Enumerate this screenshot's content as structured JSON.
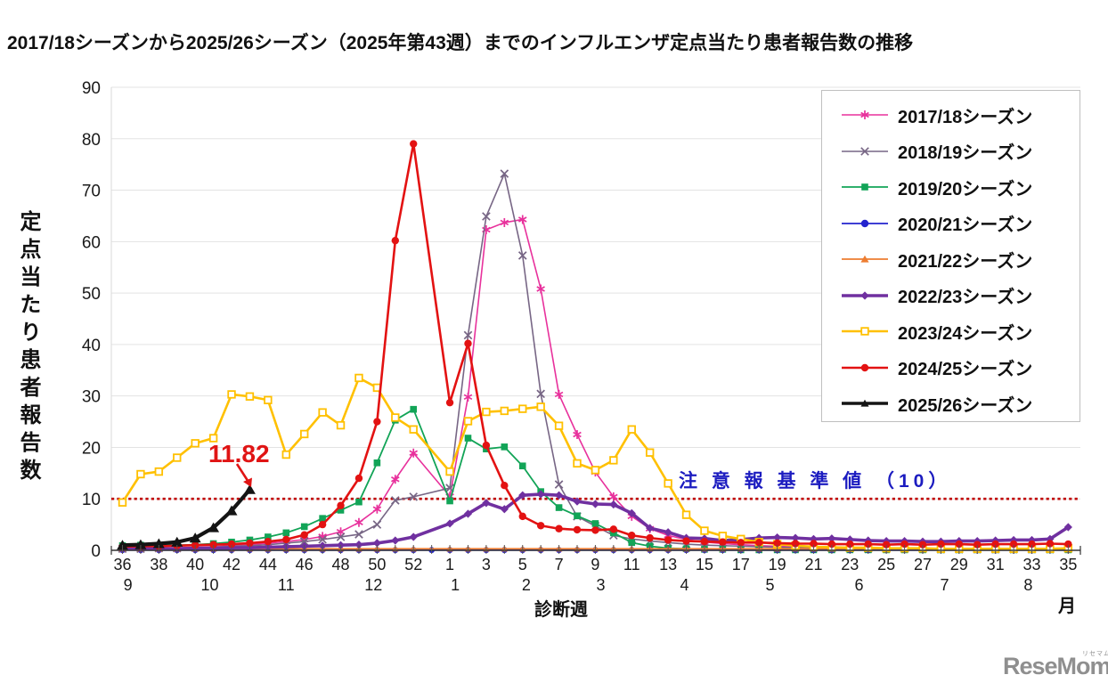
{
  "title": "2017/18シーズンから2025/26シーズン（2025年第43週）までのインフルエンザ定点当たり患者報告数の推移",
  "y_axis": {
    "label": "定点当たり患者報告数",
    "ticks": [
      0,
      10,
      20,
      30,
      40,
      50,
      60,
      70,
      80,
      90
    ],
    "max": 90
  },
  "x_axis": {
    "title": "診断週",
    "unit_label": "月"
  },
  "alert_line": {
    "text": "注 意 報 基 準 値 （10）",
    "value": 10,
    "line_color": "#C00000",
    "text_color": "#1C1CC0"
  },
  "annotation": {
    "text": "11.82",
    "color": "#E01414",
    "target_week": "43"
  },
  "watermark": {
    "text": "ReseMom.",
    "ruby": "リセマム"
  },
  "chart_data": {
    "type": "line",
    "xlabel": "診断週",
    "ylabel": "定点当たり患者報告数",
    "ylim": [
      0,
      90
    ],
    "grid": true,
    "legend_position": "right",
    "weeks": [
      "36",
      "37",
      "38",
      "39",
      "40",
      "41",
      "42",
      "43",
      "44",
      "45",
      "46",
      "47",
      "48",
      "49",
      "50",
      "51",
      "52",
      "53",
      "1",
      "2",
      "3",
      "4",
      "5",
      "6",
      "7",
      "8",
      "9",
      "10",
      "11",
      "12",
      "13",
      "14",
      "15",
      "16",
      "17",
      "18",
      "19",
      "20",
      "21",
      "22",
      "23",
      "24",
      "25",
      "26",
      "27",
      "28",
      "29",
      "30",
      "31",
      "32",
      "33",
      "34",
      "35"
    ],
    "month_labels": [
      {
        "label": "9",
        "i": 0.3
      },
      {
        "label": "10",
        "i": 4.8
      },
      {
        "label": "11",
        "i": 9.0
      },
      {
        "label": "12",
        "i": 13.8
      },
      {
        "label": "1",
        "i": 18.3
      },
      {
        "label": "2",
        "i": 22.2
      },
      {
        "label": "3",
        "i": 26.3
      },
      {
        "label": "4",
        "i": 30.9
      },
      {
        "label": "5",
        "i": 35.6
      },
      {
        "label": "6",
        "i": 40.5
      },
      {
        "label": "7",
        "i": 45.2
      },
      {
        "label": "8",
        "i": 49.8
      }
    ],
    "alert_value": 10,
    "series": [
      {
        "name": "2017/18シーズン",
        "color": "#E8319C",
        "marker": "asterisk",
        "width": 1.6,
        "values": [
          0.3,
          0.3,
          0.4,
          0.5,
          0.6,
          0.7,
          0.9,
          1.1,
          1.4,
          1.7,
          2.1,
          2.7,
          3.6,
          5.4,
          8.0,
          13.8,
          18.9,
          null,
          10.5,
          29.8,
          62.3,
          63.7,
          64.3,
          50.8,
          30.3,
          22.5,
          15.2,
          10.4,
          6.6,
          4.2,
          2.9,
          2.1,
          1.6,
          1.3,
          1.1,
          0.9,
          0.8,
          0.7,
          0.6,
          0.5,
          0.5,
          0.4,
          0.4,
          0.3,
          0.3,
          0.3,
          0.3,
          0.2,
          0.2,
          0.2,
          0.2,
          0.3,
          0.3
        ]
      },
      {
        "name": "2018/19シーズン",
        "color": "#776685",
        "marker": "x",
        "width": 1.6,
        "values": [
          0.3,
          0.3,
          0.4,
          0.4,
          0.5,
          0.6,
          0.8,
          0.9,
          1.1,
          1.4,
          1.7,
          2.1,
          2.6,
          3.1,
          5.0,
          9.7,
          10.4,
          null,
          12.1,
          41.8,
          64.9,
          73.2,
          57.3,
          30.4,
          12.8,
          6.6,
          4.7,
          2.9,
          2.2,
          1.8,
          1.5,
          1.2,
          1.0,
          0.9,
          0.8,
          0.7,
          0.6,
          0.5,
          0.5,
          0.4,
          0.4,
          0.3,
          0.3,
          0.3,
          0.3,
          0.2,
          0.2,
          0.2,
          0.2,
          0.2,
          0.2,
          0.2,
          0.3
        ]
      },
      {
        "name": "2019/20シーズン",
        "color": "#12A457",
        "marker": "square",
        "width": 1.8,
        "values": [
          0.9,
          1.0,
          0.9,
          1.0,
          1.1,
          1.3,
          1.6,
          2.0,
          2.6,
          3.4,
          4.6,
          6.2,
          7.8,
          9.4,
          17.0,
          25.3,
          27.4,
          null,
          9.6,
          21.8,
          19.7,
          20.1,
          16.4,
          11.4,
          8.3,
          6.7,
          5.2,
          3.4,
          1.5,
          0.8,
          0.4,
          0.3,
          0.2,
          0.2,
          0.1,
          0.1,
          0.1,
          0.1,
          0.1,
          0.1,
          0.1,
          0.1,
          0.1,
          0.1,
          0.1,
          0.1,
          0.1,
          0.1,
          0.1,
          0.1,
          0.1,
          0.1,
          0.1
        ]
      },
      {
        "name": "2020/21シーズン",
        "color": "#2323CE",
        "marker": "circle",
        "width": 1.8,
        "values": [
          0.05,
          0.05,
          0.05,
          0.05,
          0.05,
          0.05,
          0.05,
          0.05,
          0.05,
          0.05,
          0.05,
          0.05,
          0.05,
          0.05,
          0.05,
          0.05,
          0.05,
          0.05,
          0.05,
          0.05,
          0.05,
          0.05,
          0.05,
          0.05,
          0.05,
          0.05,
          0.05,
          0.05,
          0.05,
          0.05,
          0.05,
          0.05,
          0.05,
          0.05,
          0.05,
          0.05,
          0.05,
          0.05,
          0.05,
          0.05,
          0.05,
          0.05,
          0.05,
          0.05,
          0.05,
          0.05,
          0.05,
          0.05,
          0.05,
          0.05,
          0.05,
          0.05,
          0.05
        ]
      },
      {
        "name": "2021/22シーズン",
        "color": "#ED7D31",
        "marker": "triangle",
        "width": 1.8,
        "values": [
          0.3,
          0.3,
          0.3,
          0.3,
          0.3,
          0.3,
          0.3,
          0.3,
          0.3,
          0.3,
          0.3,
          0.3,
          0.3,
          0.3,
          0.3,
          0.3,
          0.3,
          null,
          0.3,
          0.3,
          0.3,
          0.3,
          0.3,
          0.3,
          0.3,
          0.3,
          0.3,
          0.3,
          0.3,
          0.3,
          0.3,
          0.3,
          0.3,
          0.3,
          0.3,
          0.3,
          0.3,
          0.3,
          0.3,
          0.3,
          0.3,
          0.3,
          0.3,
          0.3,
          0.3,
          0.3,
          0.3,
          0.3,
          0.3,
          0.3,
          0.3,
          0.3,
          0.3
        ]
      },
      {
        "name": "2022/23シーズン",
        "color": "#7030A0",
        "marker": "diamond",
        "width": 3.6,
        "values": [
          0.3,
          0.3,
          0.3,
          0.3,
          0.4,
          0.4,
          0.5,
          0.5,
          0.6,
          0.7,
          0.8,
          0.9,
          1.0,
          1.1,
          1.4,
          1.9,
          2.6,
          null,
          5.2,
          7.1,
          9.2,
          8.0,
          10.7,
          10.9,
          10.7,
          9.5,
          9.0,
          8.9,
          7.2,
          4.3,
          3.5,
          2.4,
          2.3,
          1.9,
          2.1,
          2.4,
          2.5,
          2.4,
          2.2,
          2.3,
          2.1,
          1.9,
          1.8,
          1.8,
          1.7,
          1.7,
          1.8,
          1.8,
          1.9,
          2.0,
          2.0,
          2.2,
          4.5
        ]
      },
      {
        "name": "2023/24シーズン",
        "color": "#FFC000",
        "marker": "open-square",
        "width": 2.6,
        "values": [
          9.3,
          14.8,
          15.3,
          18.0,
          20.8,
          21.8,
          30.3,
          29.9,
          29.2,
          18.6,
          22.6,
          26.8,
          24.3,
          33.5,
          31.6,
          25.8,
          23.5,
          null,
          15.3,
          25.1,
          26.9,
          27.1,
          27.5,
          27.9,
          24.2,
          16.9,
          15.6,
          17.5,
          23.5,
          19.0,
          13.0,
          6.9,
          3.8,
          2.8,
          2.2,
          1.6,
          1.2,
          0.9,
          0.7,
          0.6,
          0.5,
          0.5,
          0.4,
          0.4,
          0.4,
          0.3,
          0.3,
          0.3,
          0.3,
          0.3,
          0.3,
          0.3,
          0.4
        ]
      },
      {
        "name": "2024/25シーズン",
        "color": "#E31212",
        "marker": "circle",
        "width": 2.6,
        "values": [
          0.7,
          0.8,
          0.8,
          0.9,
          1.0,
          1.1,
          1.2,
          1.4,
          1.7,
          2.1,
          3.0,
          5.0,
          8.7,
          14.0,
          25.0,
          60.2,
          79.0,
          null,
          28.7,
          40.2,
          20.4,
          12.6,
          6.6,
          4.8,
          4.2,
          4.0,
          3.9,
          4.1,
          2.9,
          2.4,
          2.0,
          1.8,
          1.7,
          1.6,
          1.5,
          1.5,
          1.4,
          1.3,
          1.3,
          1.2,
          1.2,
          1.2,
          1.1,
          1.2,
          1.1,
          1.2,
          1.2,
          1.1,
          1.2,
          1.2,
          1.2,
          1.3,
          1.2
        ]
      },
      {
        "name": "2025/26シーズン",
        "color": "#141414",
        "marker": "triangle",
        "width": 4.2,
        "values": [
          1.0,
          1.1,
          1.3,
          1.6,
          2.4,
          4.4,
          7.7,
          11.82,
          null,
          null,
          null,
          null,
          null,
          null,
          null,
          null,
          null,
          null,
          null,
          null,
          null,
          null,
          null,
          null,
          null,
          null,
          null,
          null,
          null,
          null,
          null,
          null,
          null,
          null,
          null,
          null,
          null,
          null,
          null,
          null,
          null,
          null,
          null,
          null,
          null,
          null,
          null,
          null,
          null,
          null,
          null,
          null,
          null
        ]
      }
    ]
  }
}
